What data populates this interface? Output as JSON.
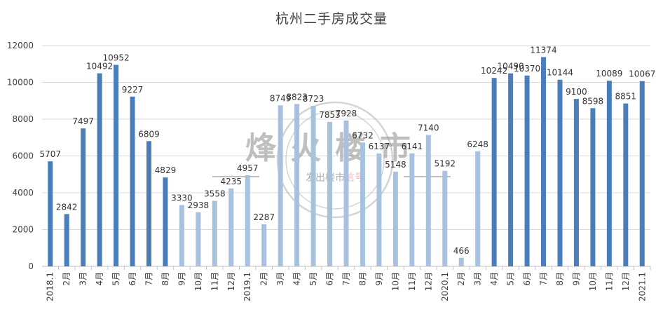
{
  "chart_data": {
    "type": "bar",
    "title": "杭州二手房成交量",
    "xlabel": "",
    "ylabel": "",
    "ylim": [
      0,
      12000
    ],
    "yticks": [
      0,
      2000,
      4000,
      6000,
      8000,
      10000,
      12000
    ],
    "grid": true,
    "legend": "none",
    "categories": [
      "2018.1",
      "2月",
      "3月",
      "4月",
      "5月",
      "6月",
      "7月",
      "8月",
      "9月",
      "10月",
      "11月",
      "12月",
      "2019.1",
      "2月",
      "3月",
      "4月",
      "5月",
      "6月",
      "7月",
      "8月",
      "9月",
      "10月",
      "11月",
      "12月",
      "2020.1",
      "2月",
      "3月",
      "4月",
      "5月",
      "6月",
      "7月",
      "8月",
      "9月",
      "10月",
      "11月",
      "12月",
      "2021.1"
    ],
    "values": [
      5707,
      2842,
      7497,
      10492,
      10952,
      9227,
      6809,
      4829,
      3330,
      2938,
      3558,
      4235,
      4957,
      2287,
      8749,
      8823,
      8723,
      7853,
      7928,
      6732,
      6137,
      5148,
      6141,
      7140,
      5192,
      466,
      6248,
      10242,
      10490,
      10370,
      11374,
      10144,
      9100,
      8598,
      10089,
      8851,
      10067
    ],
    "bar_colors": [
      "#4a7ebb",
      "#4a7ebb",
      "#4a7ebb",
      "#4a7ebb",
      "#4a7ebb",
      "#4a7ebb",
      "#4a7ebb",
      "#4a7ebb",
      "#a7c1df",
      "#a7c1df",
      "#a7c1df",
      "#a7c1df",
      "#a7c1df",
      "#a7c1df",
      "#a7c1df",
      "#a7c1df",
      "#a7c1df",
      "#a7c1df",
      "#a7c1df",
      "#a7c1df",
      "#a7c1df",
      "#a7c1df",
      "#a7c1df",
      "#a7c1df",
      "#a7c1df",
      "#a7c1df",
      "#a7c1df",
      "#4a7ebb",
      "#4a7ebb",
      "#4a7ebb",
      "#4a7ebb",
      "#4a7ebb",
      "#4a7ebb",
      "#4a7ebb",
      "#4a7ebb",
      "#4a7ebb",
      "#4a7ebb"
    ],
    "watermark": {
      "main": "烽火楼市",
      "sub": "发出楼市信号",
      "sub_highlight": "信号"
    }
  },
  "colors": {
    "dark_bar": "#4a7ebb",
    "light_bar": "#a7c1df",
    "grid": "#d9d9d9",
    "text": "#404040",
    "watermark": "#b0b0b0",
    "watermark_highlight": "#e8a0a0"
  }
}
